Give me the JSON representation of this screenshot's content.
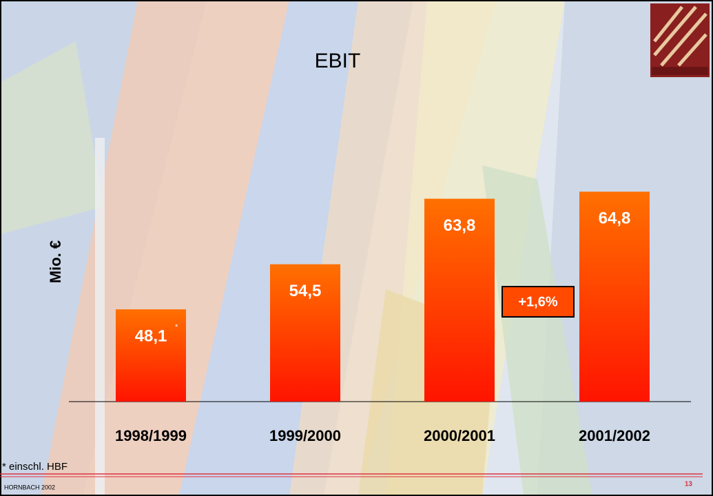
{
  "chart_data": {
    "type": "bar",
    "title": "EBIT",
    "y_label": "Mio. €",
    "categories": [
      "1998/1999",
      "1999/2000",
      "2000/2001",
      "2001/2002"
    ],
    "values": [
      48.1,
      54.5,
      63.8,
      64.8
    ],
    "value_labels": [
      "48,1",
      "54,5",
      "63,8",
      "64,8"
    ],
    "gradient": [
      "#ff7000",
      "#ff1400"
    ],
    "ylim": [
      35,
      66
    ],
    "annotations": {
      "asterisk": "*",
      "growth": "+1,6%"
    }
  },
  "footnote": "* einschl. HBF",
  "footer": "HORNBACH 2002",
  "page_number": "13"
}
